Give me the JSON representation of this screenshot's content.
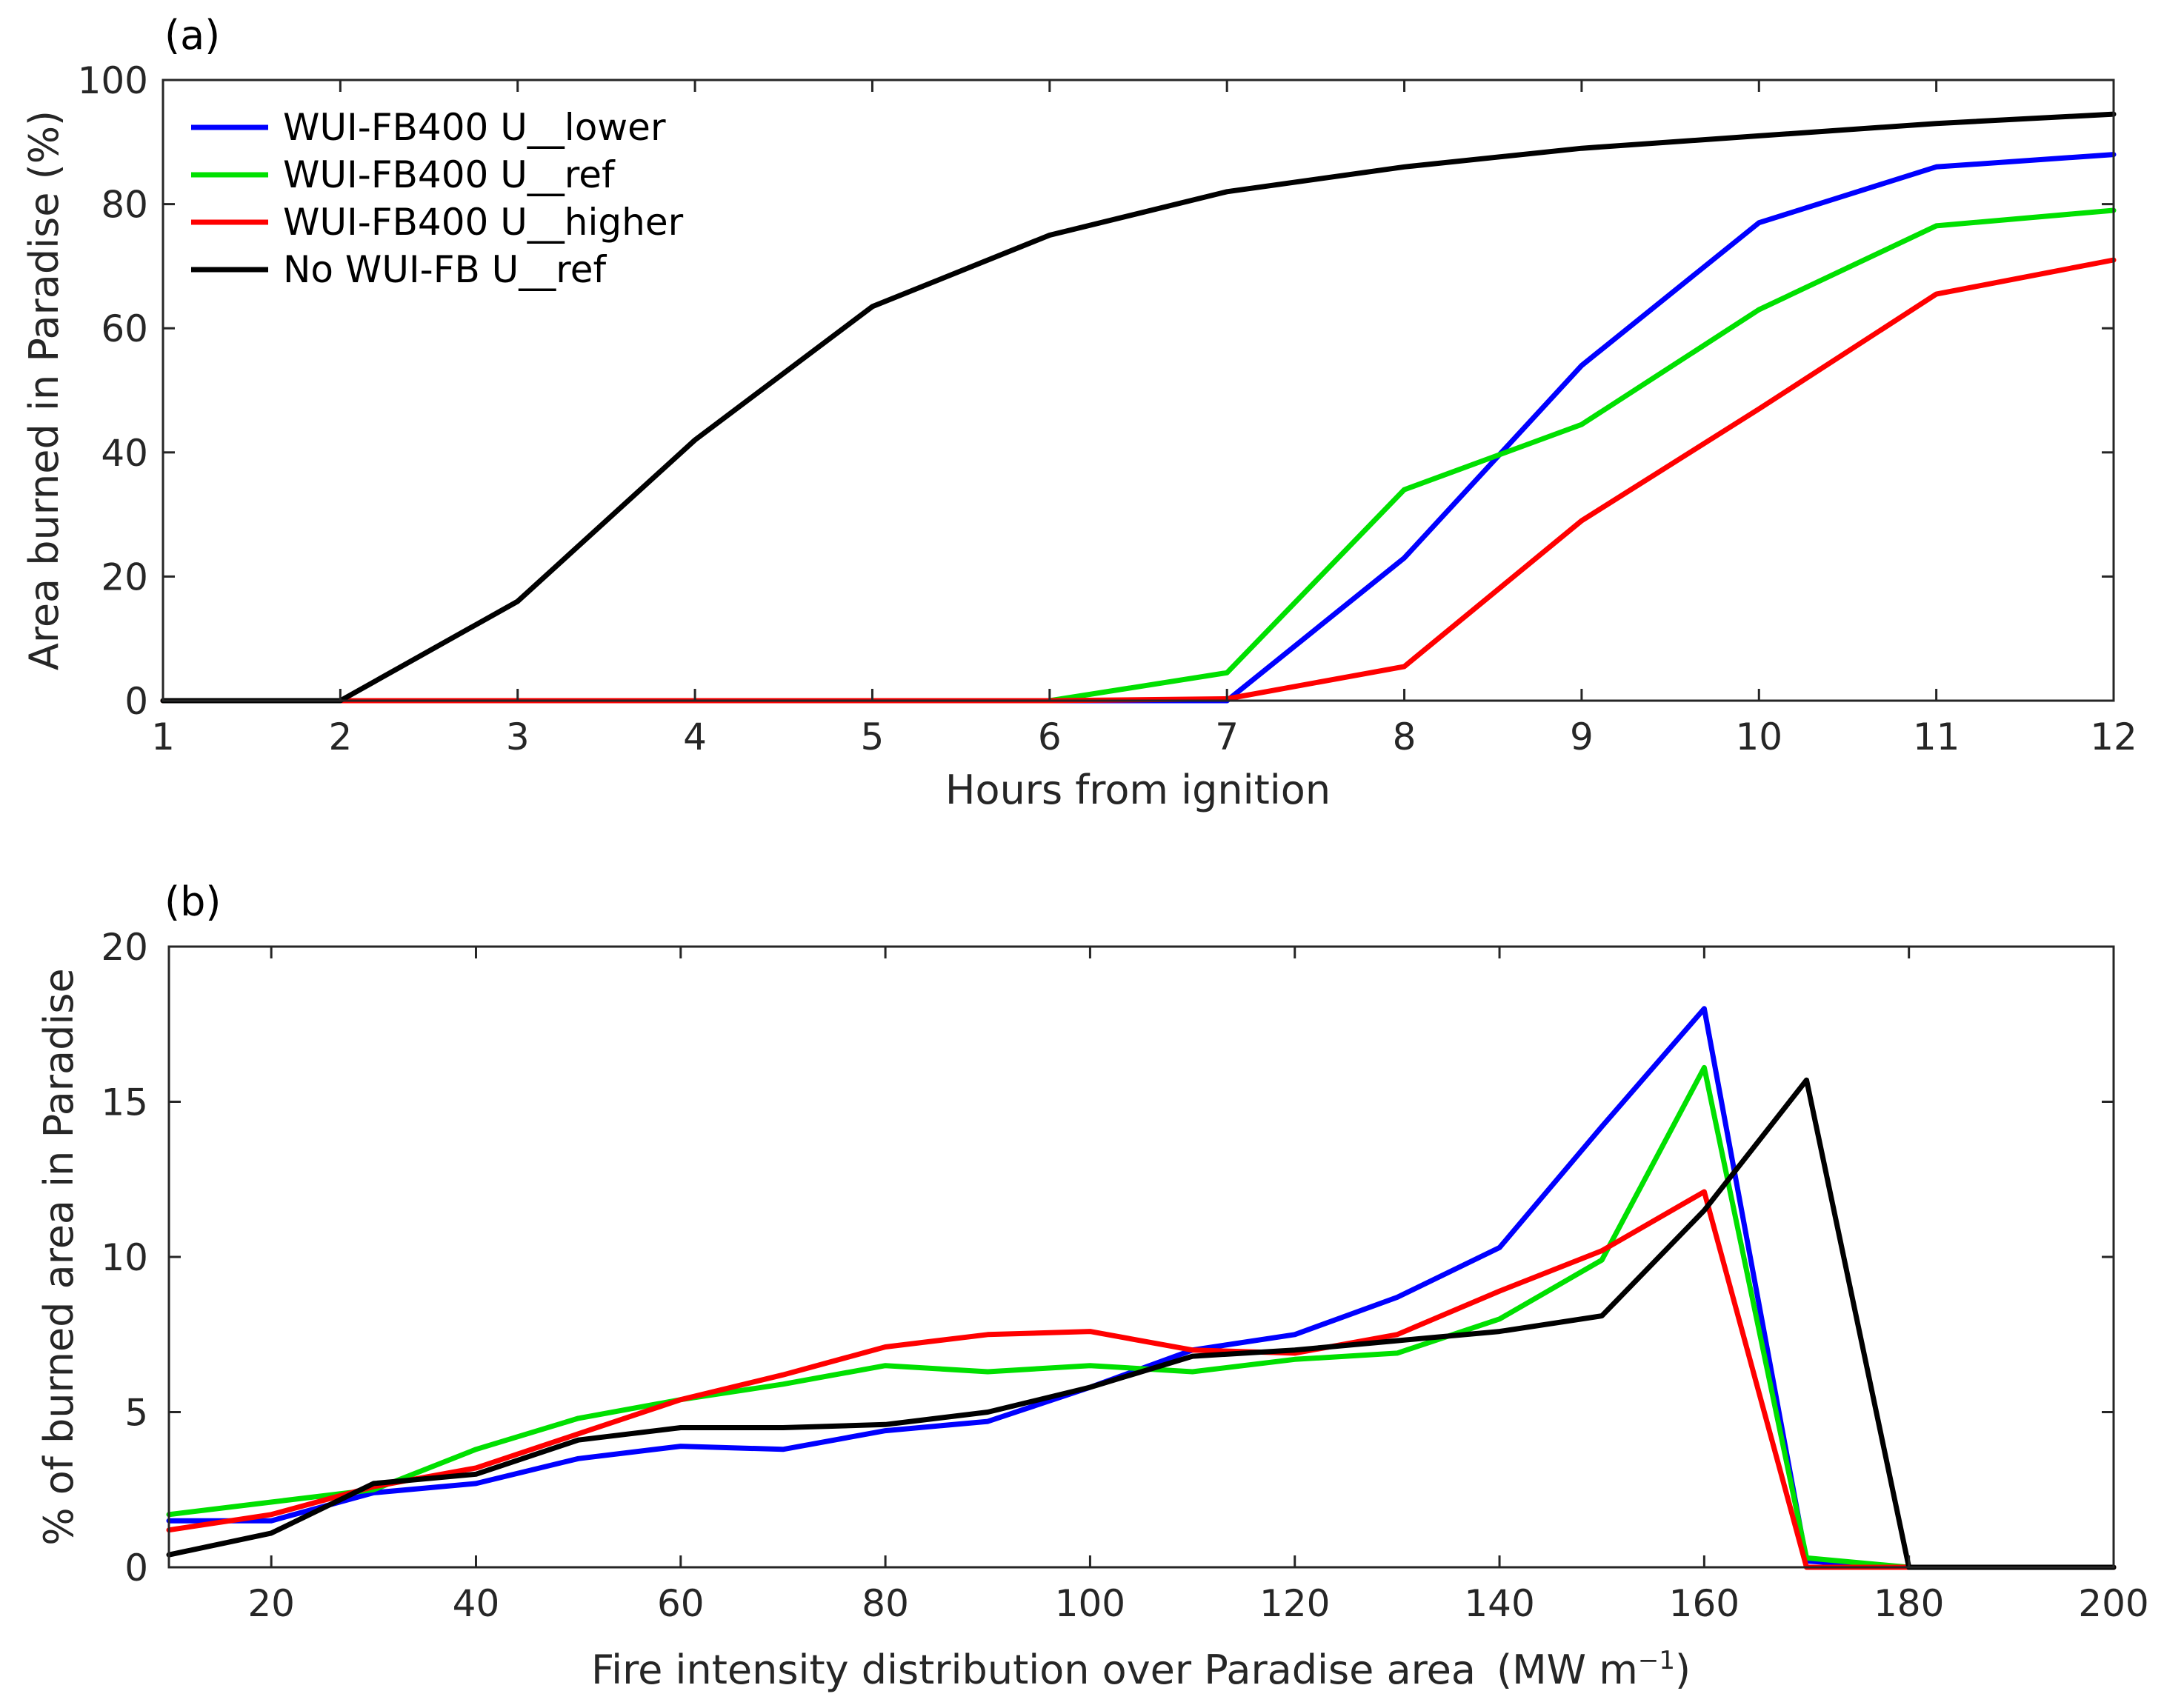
{
  "chart_data": [
    {
      "type": "line",
      "panel_label": "(a)",
      "title": "",
      "xlabel": "Hours from ignition",
      "ylabel": "Area burned in Paradise (%)",
      "xlim": [
        1,
        12
      ],
      "ylim": [
        0,
        100
      ],
      "xticks": [
        1,
        2,
        3,
        4,
        5,
        6,
        7,
        8,
        9,
        10,
        11,
        12
      ],
      "yticks": [
        0,
        20,
        40,
        60,
        80,
        100
      ],
      "grid": false,
      "legend_position": "top-left",
      "series": [
        {
          "name": "WUI-FB400 U__lower",
          "color": "#0000ff",
          "x": [
            1,
            2,
            3,
            4,
            5,
            6,
            7,
            8,
            9,
            10,
            11,
            12
          ],
          "y": [
            0,
            0,
            0,
            0,
            0,
            0,
            0,
            23,
            54,
            77,
            86,
            88
          ]
        },
        {
          "name": "WUI-FB400 U__ref",
          "color": "#00e000",
          "x": [
            1,
            2,
            3,
            4,
            5,
            6,
            7,
            8,
            9,
            10,
            11,
            12
          ],
          "y": [
            0,
            0,
            0,
            0,
            0,
            0,
            4.5,
            34,
            44.5,
            63,
            76.5,
            79
          ]
        },
        {
          "name": "WUI-FB400 U__higher",
          "color": "#ff0000",
          "x": [
            1,
            2,
            3,
            4,
            5,
            6,
            7,
            8,
            9,
            10,
            11,
            12
          ],
          "y": [
            0,
            0,
            0,
            0,
            0,
            0,
            0.3,
            5.5,
            29,
            47,
            65.5,
            71
          ]
        },
        {
          "name": "No WUI-FB U__ref",
          "color": "#000000",
          "x": [
            1,
            2,
            3,
            4,
            5,
            6,
            7,
            8,
            9,
            10,
            11,
            12
          ],
          "y": [
            0,
            0,
            16,
            42,
            63.5,
            75,
            82,
            86,
            89,
            91,
            93,
            94.5
          ]
        }
      ]
    },
    {
      "type": "line",
      "panel_label": "(b)",
      "title": "",
      "xlabel": "Fire intensity distribution over Paradise area",
      "xlabel_unit_base": "(MW m",
      "xlabel_unit_sup": "−1",
      "xlabel_unit_close": ")",
      "ylabel": "% of burned area in Paradise",
      "xlim": [
        10,
        200
      ],
      "ylim": [
        0,
        20
      ],
      "xticks": [
        20,
        40,
        60,
        80,
        100,
        120,
        140,
        160,
        180,
        200
      ],
      "yticks": [
        0,
        5,
        10,
        15,
        20
      ],
      "grid": false,
      "series": [
        {
          "name": "WUI-FB400 U__lower",
          "color": "#0000ff",
          "x": [
            10,
            20,
            30,
            40,
            50,
            60,
            70,
            80,
            90,
            100,
            110,
            120,
            130,
            140,
            150,
            160,
            170,
            180,
            190,
            200
          ],
          "y": [
            1.5,
            1.5,
            2.4,
            2.7,
            3.5,
            3.9,
            3.8,
            4.4,
            4.7,
            5.8,
            7.0,
            7.5,
            8.7,
            10.3,
            14.2,
            18.0,
            0.2,
            0,
            0,
            0
          ]
        },
        {
          "name": "WUI-FB400 U__ref",
          "color": "#00e000",
          "x": [
            10,
            20,
            30,
            40,
            50,
            60,
            70,
            80,
            90,
            100,
            110,
            120,
            130,
            140,
            150,
            160,
            170,
            180,
            190,
            200
          ],
          "y": [
            1.7,
            2.1,
            2.5,
            3.8,
            4.8,
            5.4,
            5.9,
            6.5,
            6.3,
            6.5,
            6.3,
            6.7,
            6.9,
            8.0,
            9.9,
            16.1,
            0.3,
            0,
            0,
            0
          ]
        },
        {
          "name": "WUI-FB400 U__higher",
          "color": "#ff0000",
          "x": [
            10,
            20,
            30,
            40,
            50,
            60,
            70,
            80,
            90,
            100,
            110,
            120,
            130,
            140,
            150,
            160,
            170,
            180,
            190,
            200
          ],
          "y": [
            1.2,
            1.7,
            2.6,
            3.2,
            4.3,
            5.4,
            6.2,
            7.1,
            7.5,
            7.6,
            7.0,
            6.9,
            7.5,
            8.9,
            10.2,
            12.1,
            0,
            0,
            0,
            0
          ]
        },
        {
          "name": "No WUI-FB U__ref",
          "color": "#000000",
          "x": [
            10,
            20,
            30,
            40,
            50,
            60,
            70,
            80,
            90,
            100,
            110,
            120,
            130,
            140,
            150,
            160,
            170,
            180,
            190,
            200
          ],
          "y": [
            0.4,
            1.1,
            2.7,
            3.0,
            4.1,
            4.5,
            4.5,
            4.6,
            5.0,
            5.8,
            6.8,
            7.0,
            7.3,
            7.6,
            8.1,
            11.5,
            15.7,
            0,
            0,
            0
          ]
        }
      ]
    }
  ]
}
